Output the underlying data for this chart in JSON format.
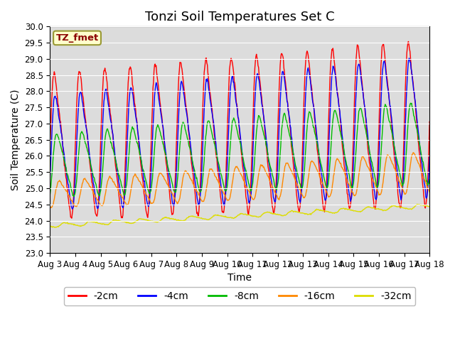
{
  "title": "Tonzi Soil Temperatures Set C",
  "xlabel": "Time",
  "ylabel": "Soil Temperature (C)",
  "ylim": [
    23.0,
    30.0
  ],
  "yticks": [
    23.0,
    23.5,
    24.0,
    24.5,
    25.0,
    25.5,
    26.0,
    26.5,
    27.0,
    27.5,
    28.0,
    28.5,
    29.0,
    29.5,
    30.0
  ],
  "xtick_labels": [
    "Aug 3",
    "Aug 4",
    "Aug 5",
    "Aug 6",
    "Aug 7",
    "Aug 8",
    "Aug 9",
    "Aug 10",
    "Aug 11",
    "Aug 12",
    "Aug 13",
    "Aug 14",
    "Aug 15",
    "Aug 16",
    "Aug 17",
    "Aug 18"
  ],
  "legend_label": "TZ_fmet",
  "series_labels": [
    "-2cm",
    "-4cm",
    "-8cm",
    "-16cm",
    "-32cm"
  ],
  "series_colors": [
    "#ff0000",
    "#0000ff",
    "#00bb00",
    "#ff8800",
    "#dddd00"
  ],
  "background_color": "#dcdcdc",
  "figure_color": "#ffffff",
  "title_fontsize": 13,
  "axis_label_fontsize": 10,
  "tick_fontsize": 8.5,
  "legend_fontsize": 10,
  "n_days": 15
}
